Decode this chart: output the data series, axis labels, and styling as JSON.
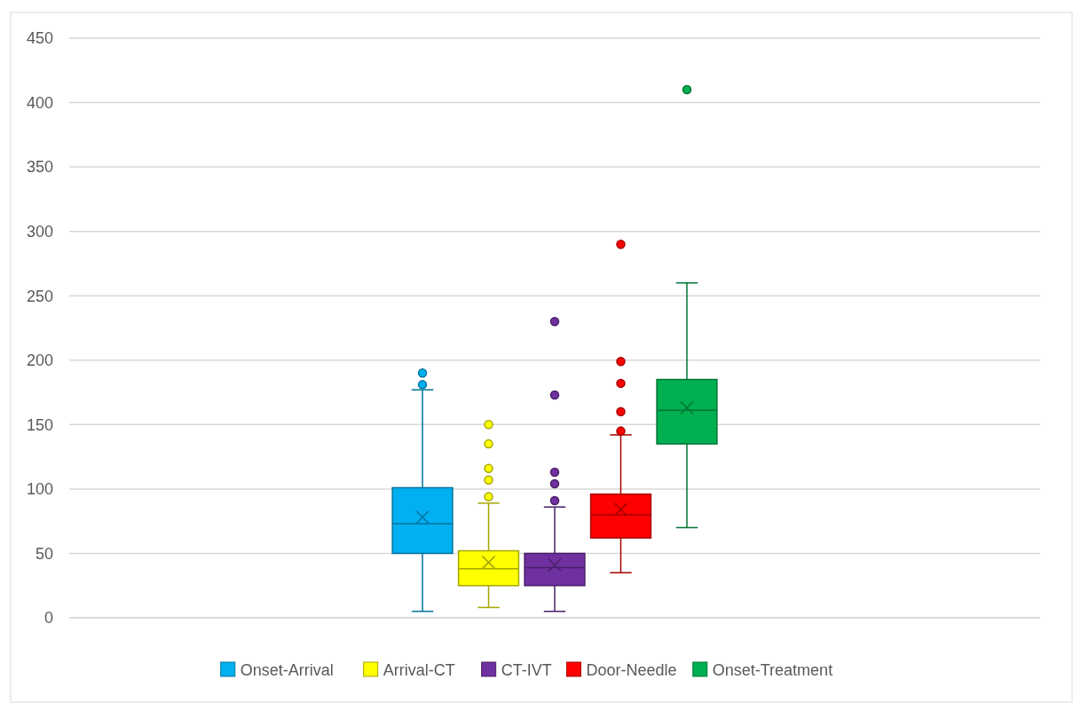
{
  "chart_data": {
    "type": "box",
    "categories": [
      null
    ],
    "ylim": [
      0,
      450
    ],
    "yticks": [
      0,
      50,
      100,
      150,
      200,
      250,
      300,
      350,
      400,
      450
    ],
    "grid": "y",
    "legend": "bottom",
    "series": [
      {
        "name": "Onset-Arrival",
        "color": "#00b0f0",
        "boxes": [
          {
            "low": 5,
            "q1": 50,
            "median": 73,
            "q3": 101,
            "high": 177,
            "mean": 78,
            "outliers": [
              181,
              190
            ]
          }
        ]
      },
      {
        "name": "Arrival-CT",
        "color": "#ffff00",
        "boxes": [
          {
            "low": 8,
            "q1": 25,
            "median": 38,
            "q3": 52,
            "high": 89,
            "mean": 43,
            "outliers": [
              94,
              107,
              116,
              135,
              150
            ]
          }
        ]
      },
      {
        "name": "CT-IVT",
        "color": "#7030a0",
        "boxes": [
          {
            "low": 5,
            "q1": 25,
            "median": 39,
            "q3": 50,
            "high": 86,
            "mean": 41,
            "outliers": [
              91,
              104,
              113,
              173,
              230
            ]
          }
        ]
      },
      {
        "name": "Door-Needle",
        "color": "#ff0000",
        "boxes": [
          {
            "low": 35,
            "q1": 62,
            "median": 80,
            "q3": 96,
            "high": 142,
            "mean": 84,
            "outliers": [
              145,
              160,
              182,
              199,
              290
            ]
          }
        ]
      },
      {
        "name": "Onset-Treatment",
        "color": "#00b050",
        "boxes": [
          {
            "low": 70,
            "q1": 135,
            "median": 161,
            "q3": 185,
            "high": 260,
            "mean": 163,
            "outliers": [
              410
            ]
          }
        ]
      }
    ]
  }
}
